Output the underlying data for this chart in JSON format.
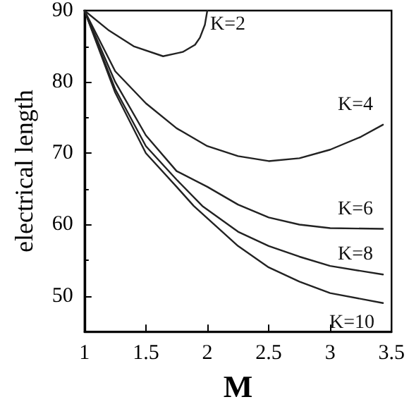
{
  "chart_data": {
    "type": "line",
    "xlabel": "M",
    "ylabel": "electrical length",
    "xlim": [
      1,
      3.5
    ],
    "ylim": [
      45,
      90
    ],
    "xticks": [
      1,
      1.5,
      2,
      2.5,
      3,
      3.5
    ],
    "yticks": [
      50,
      60,
      70,
      80,
      90
    ],
    "grid": false,
    "marker": "none",
    "line_style": "solid",
    "series": [
      {
        "name": "K=2",
        "color": "#222222",
        "x": [
          1,
          1.2,
          1.4,
          1.64,
          1.8,
          1.9,
          1.94,
          1.98,
          2.0
        ],
        "values": [
          90,
          87.2,
          85,
          83.6,
          84.2,
          85.2,
          86.2,
          88,
          90
        ]
      },
      {
        "name": "K=4",
        "color": "#222222",
        "x": [
          1,
          1.25,
          1.5,
          1.75,
          2,
          2.25,
          2.5,
          2.75,
          3,
          3.25,
          3.43
        ],
        "values": [
          90,
          81.5,
          77,
          73.5,
          71,
          69.6,
          68.9,
          69.3,
          70.5,
          72.3,
          74
        ]
      },
      {
        "name": "K=6",
        "color": "#222222",
        "x": [
          1,
          1.25,
          1.5,
          1.75,
          2,
          2.25,
          2.5,
          2.75,
          3,
          3.43
        ],
        "values": [
          90,
          80,
          72.5,
          67.5,
          65.3,
          62.8,
          61,
          60,
          59.5,
          59.4
        ]
      },
      {
        "name": "K=8",
        "color": "#222222",
        "x": [
          1,
          1.25,
          1.5,
          1.75,
          1.96,
          2.25,
          2.5,
          2.75,
          3,
          3.43
        ],
        "values": [
          90,
          79,
          71,
          66.3,
          62.6,
          59,
          57,
          55.5,
          54.2,
          53
        ]
      },
      {
        "name": "K=10",
        "color": "#222222",
        "x": [
          1,
          1.25,
          1.5,
          1.75,
          1.89,
          2.25,
          2.5,
          2.75,
          3,
          3.43
        ],
        "values": [
          90,
          78.5,
          70,
          65.3,
          62.6,
          57,
          54,
          52,
          50.4,
          49
        ]
      }
    ]
  }
}
